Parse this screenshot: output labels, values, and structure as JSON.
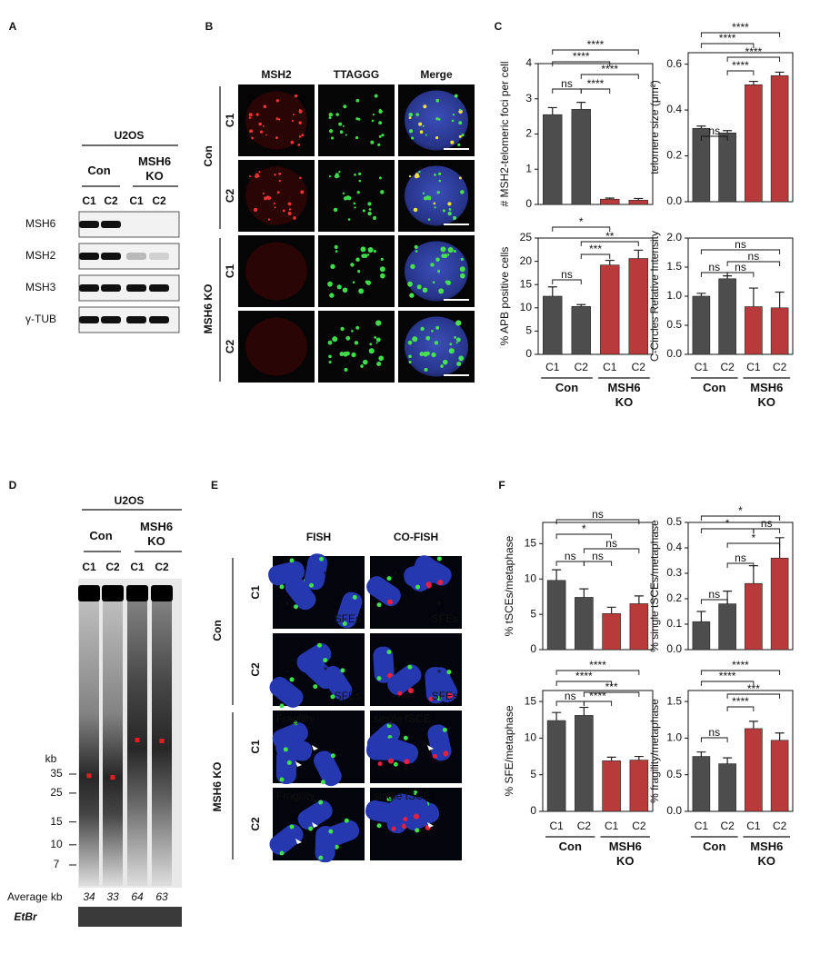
{
  "panel_labels": [
    "A",
    "B",
    "C",
    "D",
    "E",
    "F"
  ],
  "blot": {
    "cell_line": "U2OS",
    "groups": [
      "Con",
      "MSH6 KO"
    ],
    "lanes": [
      "C1",
      "C2",
      "C1",
      "C2"
    ],
    "proteins": [
      "MSH6",
      "MSH2",
      "MSH3",
      "γ-TUB"
    ]
  },
  "microscopy": {
    "channels": [
      "MSH2",
      "TTAGGG",
      "Merge"
    ],
    "groups": [
      "Con",
      "MSH6 KO"
    ],
    "rows": [
      "C1",
      "C2",
      "C1",
      "C2"
    ]
  },
  "gel": {
    "cell_line": "U2OS",
    "groups": [
      "Con",
      "MSH6 KO"
    ],
    "lanes": [
      "C1",
      "C2",
      "C1",
      "C2"
    ],
    "unit": "kb",
    "markers": [
      35,
      25,
      15,
      10,
      7
    ],
    "average_label": "Average kb",
    "averages": [
      34,
      33,
      64,
      63
    ],
    "stain": "EtBr"
  },
  "fish": {
    "columns": [
      "FISH",
      "CO-FISH"
    ],
    "groups": [
      "Con",
      "MSH6 KO"
    ],
    "rows": [
      "C1",
      "C2",
      "C1",
      "C2"
    ],
    "tile_labels": [
      [
        "SFEs",
        "SFEs"
      ],
      [
        "SFEs",
        "SFEs"
      ],
      [
        "Fragility",
        "single tSCE"
      ],
      [
        "Fragility",
        "single tSCE"
      ]
    ],
    "marker": "*"
  },
  "chart_data": [
    {
      "type": "bar",
      "ylabel": "# MSH2-telomeric foci per cell",
      "values": [
        2.55,
        2.7,
        0.15,
        0.12
      ],
      "errors": [
        0.2,
        0.2,
        0.03,
        0.05
      ],
      "colors": [
        "#4d4d4d",
        "#4d4d4d",
        "#b83a3a",
        "#b83a3a"
      ],
      "ylim": [
        0,
        4
      ],
      "yticks": [
        0,
        1,
        2,
        3,
        4
      ],
      "annotations": [
        "****",
        "****",
        "****",
        "ns",
        "****"
      ]
    },
    {
      "type": "bar",
      "ylabel": "telomere size (μm²)",
      "values": [
        0.32,
        0.3,
        0.51,
        0.55
      ],
      "errors": [
        0.01,
        0.01,
        0.015,
        0.015
      ],
      "colors": [
        "#4d4d4d",
        "#4d4d4d",
        "#b83a3a",
        "#b83a3a"
      ],
      "ylim": [
        0,
        0.65
      ],
      "yticks": [
        {
          "value": 0,
          "label": "0.0"
        },
        0.2,
        0.4,
        0.6
      ],
      "annotations": [
        "****",
        "****",
        "****",
        "****",
        "ns"
      ]
    },
    {
      "type": "bar",
      "ylabel": "% APB positive cells",
      "categories": [
        "C1",
        "C2",
        "C1",
        "C2"
      ],
      "groups": [
        "Con",
        "MSH6 KO"
      ],
      "values": [
        12.5,
        10.3,
        19.2,
        20.6
      ],
      "errors": [
        2,
        0.4,
        1,
        1.8
      ],
      "colors": [
        "#4d4d4d",
        "#4d4d4d",
        "#b83a3a",
        "#b83a3a"
      ],
      "ylim": [
        0,
        25
      ],
      "yticks": [
        0,
        5,
        10,
        15,
        20,
        25
      ],
      "annotations": [
        "*",
        "**",
        "***",
        "ns"
      ]
    },
    {
      "type": "bar",
      "ylabel": "C-Circles Relative Intensity",
      "categories": [
        "C1",
        "C2",
        "C1",
        "C2"
      ],
      "groups": [
        "Con",
        "MSH6 KO"
      ],
      "values": [
        1.0,
        1.3,
        0.82,
        0.8
      ],
      "errors": [
        0.05,
        0.05,
        0.32,
        0.27
      ],
      "colors": [
        "#4d4d4d",
        "#4d4d4d",
        "#b83a3a",
        "#b83a3a"
      ],
      "ylim": [
        0,
        2
      ],
      "yticks": [
        {
          "value": 0,
          "label": "0.0"
        },
        0.5,
        {
          "value": 1,
          "label": "1.0"
        },
        1.5,
        {
          "value": 2,
          "label": "2.0"
        }
      ],
      "annotations": [
        "ns",
        "ns",
        "ns",
        "ns"
      ]
    },
    {
      "type": "bar",
      "ylabel": "% tSCEs/metaphase",
      "values": [
        9.8,
        7.4,
        5.1,
        6.5
      ],
      "errors": [
        1.5,
        1.2,
        0.9,
        1.1
      ],
      "colors": [
        "#4d4d4d",
        "#4d4d4d",
        "#b83a3a",
        "#b83a3a"
      ],
      "ylim": [
        0,
        18
      ],
      "yticks": [
        0,
        5,
        10,
        15
      ],
      "annotations": [
        "ns",
        "*",
        "ns",
        "ns",
        "ns"
      ]
    },
    {
      "type": "bar",
      "ylabel": "% single tSCEs/metaphase",
      "values": [
        0.11,
        0.18,
        0.26,
        0.36
      ],
      "errors": [
        0.04,
        0.05,
        0.07,
        0.08
      ],
      "colors": [
        "#4d4d4d",
        "#4d4d4d",
        "#b83a3a",
        "#b83a3a"
      ],
      "ylim": [
        0,
        0.5
      ],
      "yticks": [
        {
          "value": 0,
          "label": "0.0"
        },
        0.1,
        0.2,
        0.3,
        0.4,
        0.5
      ],
      "annotations": [
        "*",
        "*",
        "ns",
        "*",
        "ns",
        "ns"
      ]
    },
    {
      "type": "bar",
      "ylabel": "% SFE/metaphase",
      "categories": [
        "C1",
        "C2",
        "C1",
        "C2"
      ],
      "groups": [
        "Con",
        "MSH6 KO"
      ],
      "values": [
        12.4,
        13.1,
        6.9,
        7.0
      ],
      "errors": [
        1.1,
        1.1,
        0.5,
        0.5
      ],
      "colors": [
        "#4d4d4d",
        "#4d4d4d",
        "#b83a3a",
        "#b83a3a"
      ],
      "ylim": [
        0,
        16.5
      ],
      "yticks": [
        0,
        5,
        10,
        15
      ],
      "annotations": [
        "****",
        "****",
        "***",
        "ns",
        "****"
      ]
    },
    {
      "type": "bar",
      "ylabel": "% fragility/metaphase",
      "categories": [
        "C1",
        "C2",
        "C1",
        "C2"
      ],
      "groups": [
        "Con",
        "MSH6 KO"
      ],
      "values": [
        0.75,
        0.65,
        1.13,
        0.97
      ],
      "errors": [
        0.06,
        0.08,
        0.1,
        0.1
      ],
      "colors": [
        "#4d4d4d",
        "#4d4d4d",
        "#b83a3a",
        "#b83a3a"
      ],
      "ylim": [
        0,
        1.65
      ],
      "yticks": [
        {
          "value": 0,
          "label": "0.0"
        },
        0.5,
        {
          "value": 1,
          "label": "1.0"
        },
        1.5
      ],
      "annotations": [
        "****",
        "****",
        "***",
        "****",
        "ns"
      ]
    }
  ]
}
